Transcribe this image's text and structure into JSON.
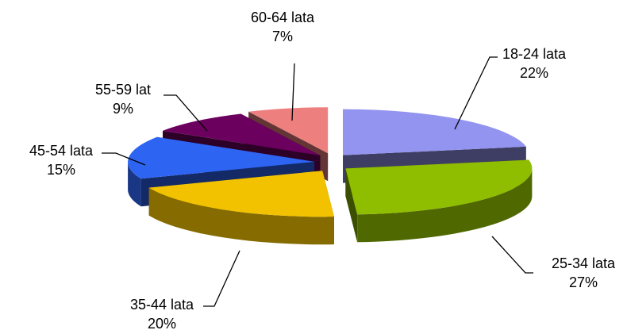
{
  "chart_data": {
    "type": "pie",
    "style": "3d-exploded",
    "title": "",
    "legend": "none",
    "slices": [
      {
        "label": "18-24 lata",
        "value_label": "22%",
        "value": 22,
        "color": "#9393f0"
      },
      {
        "label": "25-34 lata",
        "value_label": "27%",
        "value": 27,
        "color": "#8fbd00"
      },
      {
        "label": "35-44 lata",
        "value_label": "20%",
        "value": 20,
        "color": "#f2c200"
      },
      {
        "label": "45-54 lata",
        "value_label": "15%",
        "value": 15,
        "color": "#2e64f2"
      },
      {
        "label": "55-59 lat",
        "value_label": "9%",
        "value": 9,
        "color": "#6b005e"
      },
      {
        "label": "60-64 lata",
        "value_label": "7%",
        "value": 7,
        "color": "#ee7f7f"
      }
    ]
  }
}
